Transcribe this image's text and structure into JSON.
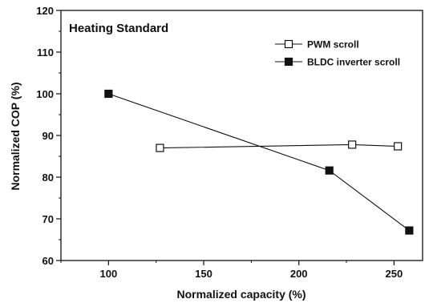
{
  "chart_data": {
    "type": "line",
    "title": "",
    "annotation": "Heating Standard",
    "xlabel": "Normalized capacity (%)",
    "ylabel": "Normalized COP (%)",
    "xlim": [
      75,
      265
    ],
    "ylim": [
      60,
      120
    ],
    "xticks": [
      100,
      150,
      200,
      250
    ],
    "yticks": [
      60,
      70,
      80,
      90,
      100,
      110,
      120
    ],
    "grid": false,
    "legend_position": "top-right",
    "series": [
      {
        "name": "PWM scroll",
        "marker": "open-square",
        "line_style": "solid",
        "color": "#111111",
        "x": [
          127,
          228,
          252
        ],
        "y": [
          87.0,
          87.8,
          87.4
        ]
      },
      {
        "name": "BLDC inverter scroll",
        "marker": "filled-square",
        "line_style": "solid",
        "color": "#111111",
        "x": [
          100,
          216,
          258
        ],
        "y": [
          100.0,
          81.6,
          67.2
        ]
      }
    ]
  }
}
